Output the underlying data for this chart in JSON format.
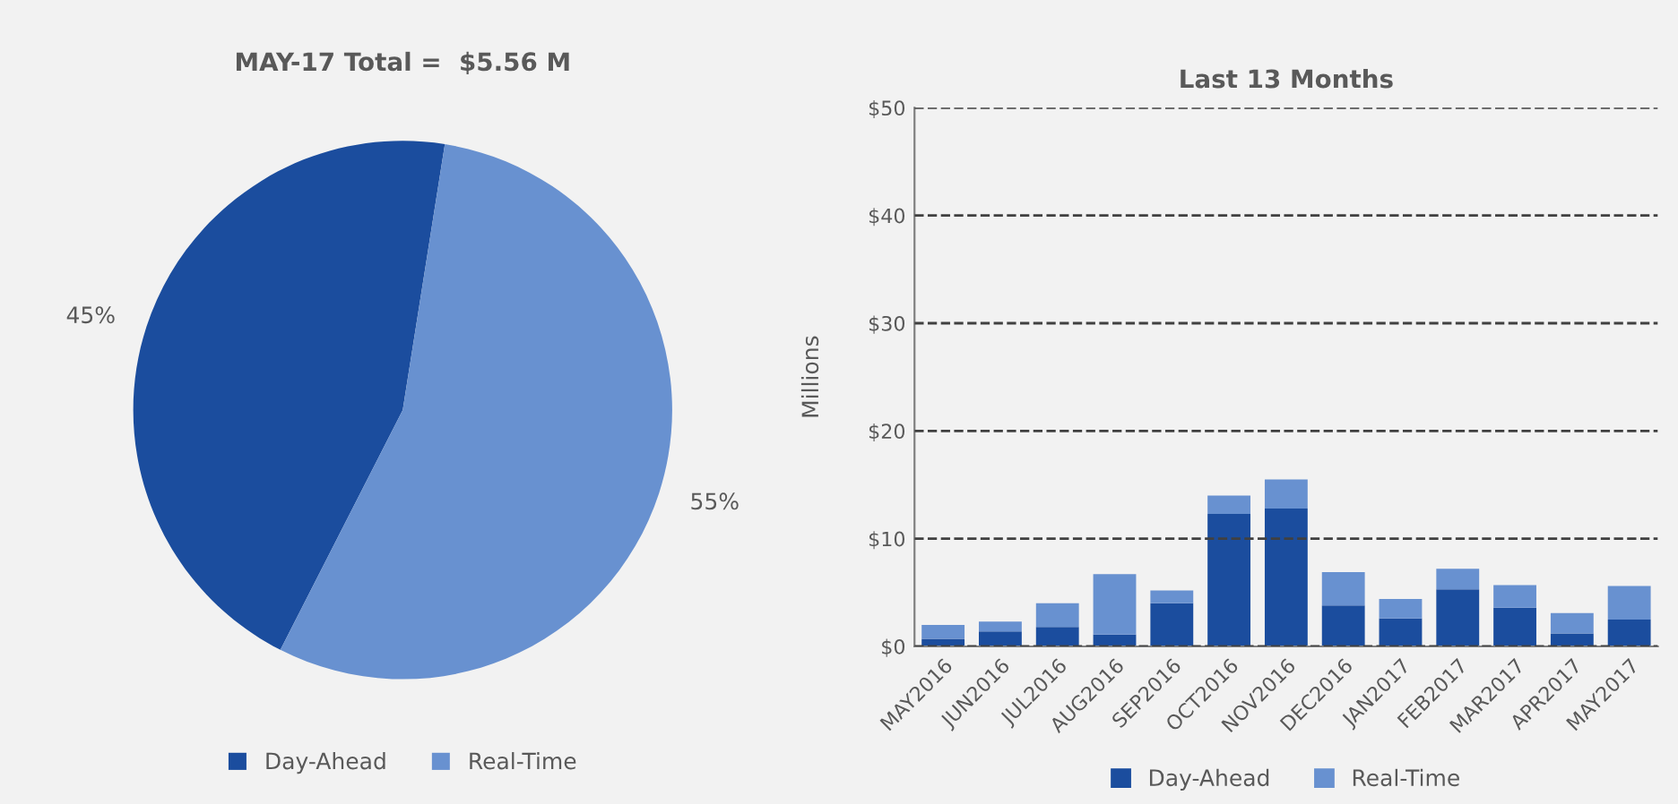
{
  "chart_data": [
    {
      "type": "pie",
      "title": "MAY-17 Total =  $5.56 M",
      "categories": [
        "Day-Ahead",
        "Real-Time"
      ],
      "values": [
        45,
        55
      ],
      "colors": [
        "#1b4d9e",
        "#6891d0"
      ],
      "value_labels": [
        "45%",
        "55%"
      ],
      "legend": "bottom"
    },
    {
      "type": "bar",
      "title": "Last 13 Months",
      "ylabel": "Millions",
      "stacked": true,
      "categories": [
        "MAY2016",
        "JUN2016",
        "JUL2016",
        "AUG2016",
        "SEP2016",
        "OCT2016",
        "NOV2016",
        "DEC2016",
        "JAN2017",
        "FEB2017",
        "MAR2017",
        "APR2017",
        "MAY2017"
      ],
      "series": [
        {
          "name": "Day-Ahead",
          "color": "#1b4d9e",
          "values": [
            0.7,
            1.4,
            1.8,
            1.1,
            4.0,
            12.3,
            12.8,
            3.8,
            2.6,
            5.3,
            3.6,
            1.2,
            2.5
          ]
        },
        {
          "name": "Real-Time",
          "color": "#6891d0",
          "values": [
            1.3,
            0.9,
            2.2,
            5.6,
            1.2,
            1.7,
            2.7,
            3.1,
            1.8,
            1.9,
            2.1,
            1.9,
            3.1
          ]
        }
      ],
      "ylim": [
        0,
        50
      ],
      "yticks": [
        {
          "value": 0,
          "label": "$0"
        },
        {
          "value": 10,
          "label": "$10"
        },
        {
          "value": 20,
          "label": "$20"
        },
        {
          "value": 30,
          "label": "$30"
        },
        {
          "value": 40,
          "label": "$40"
        },
        {
          "value": 50,
          "label": "$50"
        }
      ],
      "grid": "y",
      "line_style": "dashed",
      "legend": "bottom"
    }
  ]
}
